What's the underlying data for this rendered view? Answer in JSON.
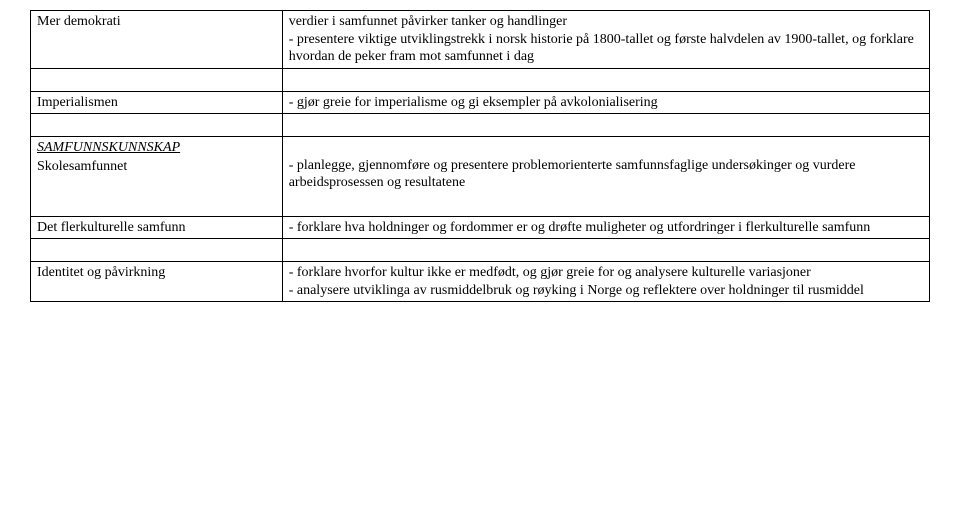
{
  "colors": {
    "background": "#ffffff",
    "text": "#000000",
    "border": "#000000"
  },
  "typography": {
    "font_family": "Times New Roman",
    "body_fontsize_pt": 11
  },
  "table": {
    "column_widths_pct": [
      28,
      72
    ],
    "rows": [
      {
        "left": "Mer demokrati",
        "right_lines": [
          "verdier i samfunnet påvirker tanker og handlinger",
          "- presentere viktige utviklingstrekk i norsk historie på 1800-tallet og første halvdelen av 1900-tallet, og forklare hvordan de peker fram mot samfunnet i dag"
        ]
      },
      {
        "left": "Imperialismen",
        "right_lines": [
          "- gjør greie for imperialisme og gi eksempler på avkolonialisering"
        ]
      },
      {
        "left_heading": "SAMFUNNSKUNNSKAP",
        "left_sub": "Skolesamfunnet",
        "right_lines": [
          "- planlegge, gjennomføre og presentere problemorienterte samfunnsfaglige undersøkinger og vurdere arbeidsprosessen og resultatene"
        ]
      },
      {
        "left": "Det flerkulturelle samfunn",
        "right_lines": [
          "- forklare hva holdninger og fordommer er og drøfte muligheter og utfordringer i flerkulturelle samfunn"
        ]
      },
      {
        "left": "Identitet og påvirkning",
        "right_lines": [
          "- forklare hvorfor kultur ikke er medfødt, og gjør greie for og analysere kulturelle variasjoner",
          "- analysere utviklinga av rusmiddelbruk og røyking i Norge og reflektere over holdninger til rusmiddel"
        ]
      }
    ]
  }
}
